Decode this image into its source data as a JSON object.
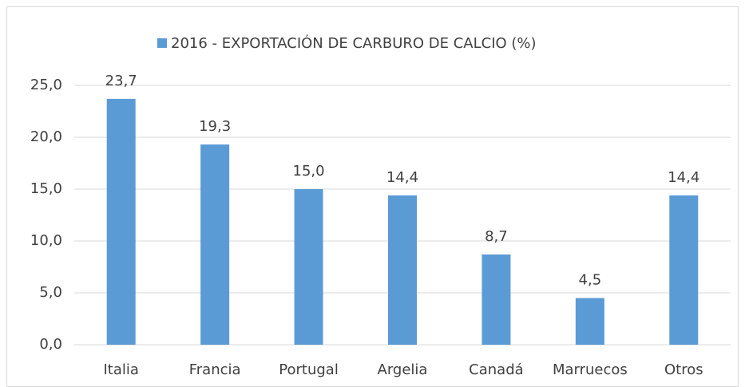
{
  "chart_data": {
    "type": "bar",
    "categories": [
      "Italia",
      "Francia",
      "Portugal",
      "Argelia",
      "Canadá",
      "Marruecos",
      "Otros"
    ],
    "series": [
      {
        "name": "2016 - EXPORTACIÓN DE CARBURO DE CALCIO (%)",
        "color": "#5b9bd5",
        "values": [
          23.7,
          19.3,
          15.0,
          14.4,
          8.7,
          4.5,
          14.4
        ],
        "value_labels": [
          "23,7",
          "19,3",
          "15,0",
          "14,4",
          "8,7",
          "4,5",
          "14,4"
        ]
      }
    ],
    "ylim": [
      0,
      25
    ],
    "yticks": [
      {
        "value": 0,
        "label": "0,0"
      },
      {
        "value": 5,
        "label": "5,0"
      },
      {
        "value": 10,
        "label": "10,0"
      },
      {
        "value": 15,
        "label": "15,0"
      },
      {
        "value": 20,
        "label": "20,0"
      },
      {
        "value": 25,
        "label": "25,0"
      }
    ],
    "grid": true,
    "legend": "top"
  }
}
